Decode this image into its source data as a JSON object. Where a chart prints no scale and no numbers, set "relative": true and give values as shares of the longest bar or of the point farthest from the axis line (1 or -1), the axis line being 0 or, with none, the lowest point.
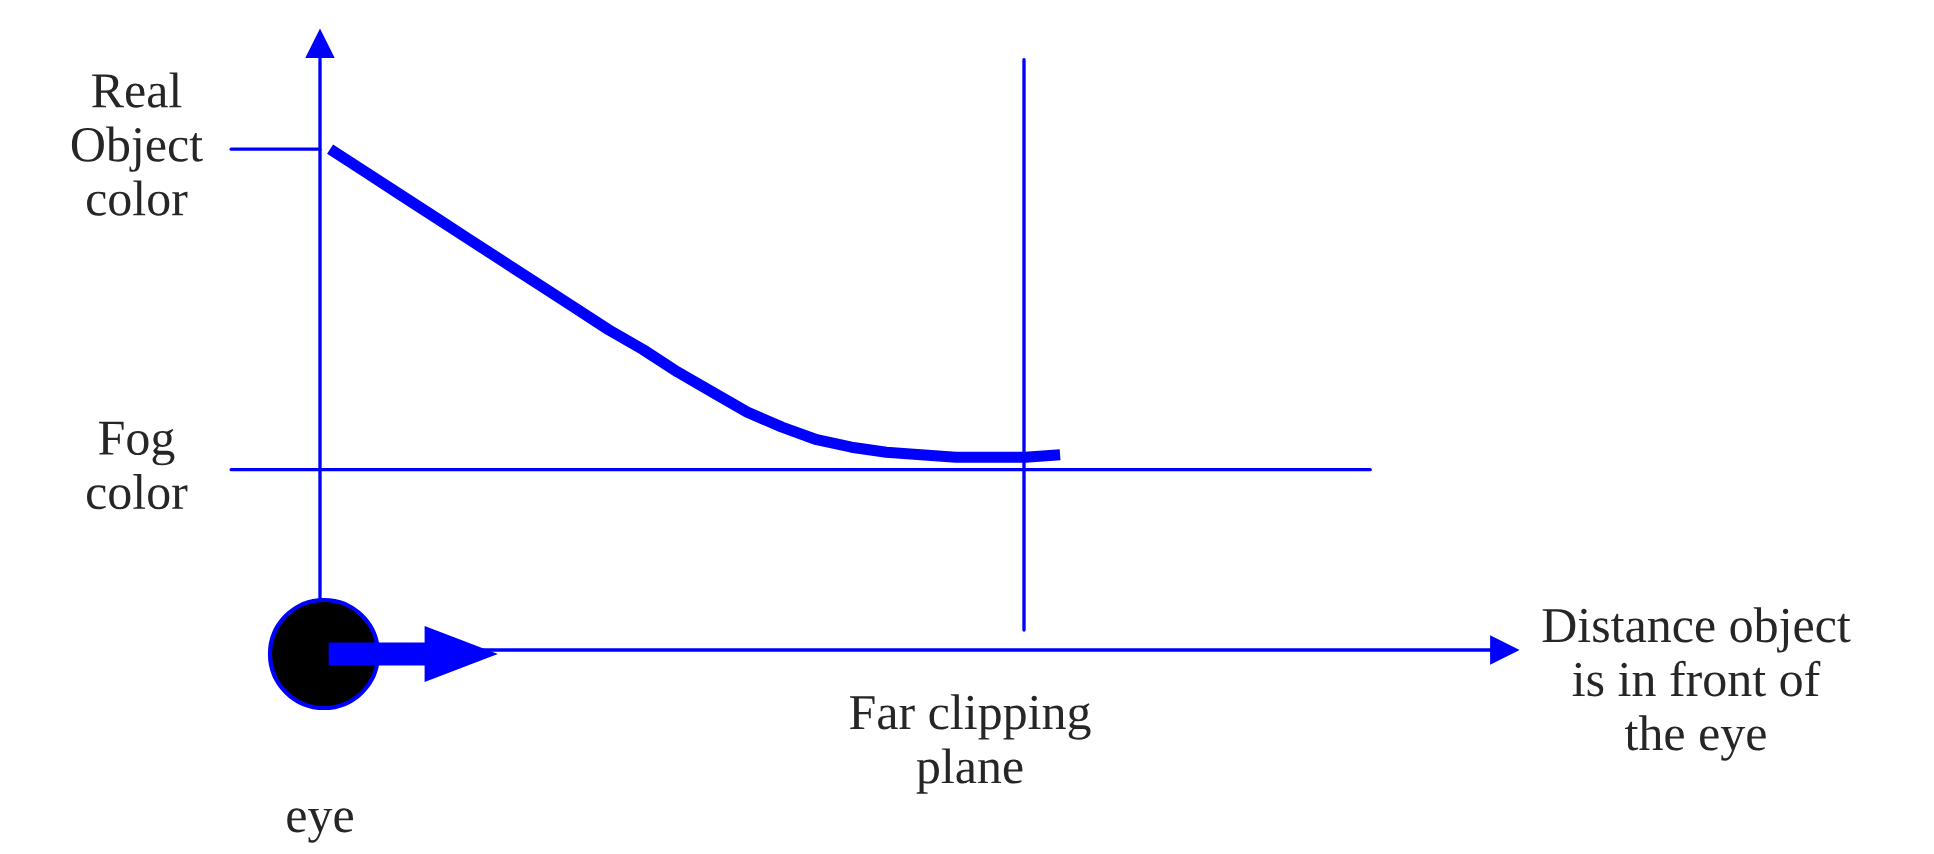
{
  "chart_data": {
    "type": "line",
    "relative": true,
    "categories": [
      null,
      null,
      null,
      null,
      null,
      null,
      null,
      null,
      null,
      null,
      null,
      null,
      null,
      null,
      null,
      null,
      null,
      null,
      null,
      null,
      null,
      null
    ],
    "series": [
      {
        "color": "#0000ff",
        "values": [
          1.0,
          0.955,
          0.91,
          0.865,
          0.82,
          0.775,
          0.73,
          0.685,
          0.64,
          0.6,
          0.555,
          0.515,
          0.475,
          0.445,
          0.42,
          0.405,
          0.395,
          0.39,
          0.385,
          0.385,
          0.385,
          0.39
        ]
      }
    ],
    "ref_lines": [
      {
        "axis": "y",
        "value": 1.0,
        "label": "Real Object color",
        "color": "#0000ff"
      },
      {
        "axis": "y",
        "value": 0.36,
        "label": "Fog color",
        "color": "#0000ff"
      }
    ],
    "annotations": [
      "eye",
      "Far clipping plane",
      "Distance object is in front of the eye"
    ],
    "legend": false,
    "marker": "none",
    "line_style": "solid"
  }
}
